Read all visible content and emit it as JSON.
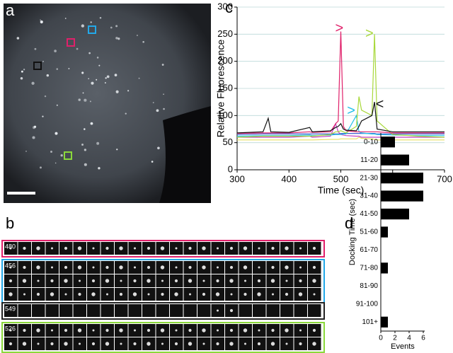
{
  "panel_labels": [
    "a",
    "b",
    "c",
    "d"
  ],
  "traces": [
    "480",
    "456",
    "549",
    "526"
  ],
  "chart_data": [
    {
      "type": "line",
      "xlabel": "Time (sec)",
      "ylabel": "Relative Fluorescence",
      "x": [
        300,
        350,
        360,
        365,
        400,
        440,
        445,
        480,
        490,
        495,
        500,
        505,
        510,
        530,
        535,
        540,
        560,
        565,
        570,
        600,
        650,
        700
      ],
      "series": [
        {
          "color": "#111111",
          "values": [
            68,
            70,
            95,
            70,
            69,
            78,
            70,
            72,
            78,
            80,
            85,
            75,
            73,
            72,
            80,
            90,
            100,
            125,
            75,
            70,
            70,
            70
          ]
        },
        {
          "color": "#e0206a",
          "values": [
            67,
            68,
            68,
            68,
            68,
            70,
            69,
            70,
            85,
            90,
            255,
            80,
            72,
            70,
            70,
            70,
            70,
            70,
            70,
            68,
            68,
            68
          ]
        },
        {
          "color": "#a8d83a",
          "values": [
            60,
            62,
            62,
            62,
            62,
            62,
            62,
            65,
            70,
            70,
            72,
            70,
            68,
            80,
            135,
            110,
            100,
            250,
            90,
            65,
            62,
            60
          ]
        },
        {
          "color": "#22c0e8",
          "values": [
            62,
            63,
            63,
            63,
            63,
            64,
            63,
            64,
            65,
            65,
            65,
            66,
            66,
            100,
            70,
            68,
            66,
            66,
            65,
            64,
            63,
            63
          ]
        },
        {
          "color": "#c040c0",
          "values": [
            60,
            60,
            60,
            60,
            60,
            62,
            60,
            62,
            85,
            70,
            65,
            64,
            63,
            62,
            62,
            60,
            60,
            60,
            60,
            60,
            60,
            60
          ]
        },
        {
          "color": "#e8e060",
          "values": [
            55,
            55,
            55,
            55,
            55,
            55,
            55,
            56,
            56,
            56,
            57,
            57,
            57,
            57,
            60,
            58,
            57,
            56,
            55,
            55,
            55,
            55
          ]
        },
        {
          "color": "#4060d0",
          "values": [
            65,
            66,
            66,
            66,
            66,
            66,
            66,
            66,
            66,
            66,
            67,
            67,
            67,
            67,
            67,
            67,
            67,
            67,
            66,
            66,
            66,
            66
          ]
        }
      ],
      "xlim": [
        300,
        700
      ],
      "xticks": [
        300,
        400,
        500,
        600,
        700
      ],
      "ylim": [
        0,
        300
      ],
      "yticks": [
        0,
        50,
        100,
        150,
        200,
        250,
        300
      ],
      "grid": true,
      "annotations": [
        {
          "text": ">",
          "x": 497,
          "y": 260,
          "color": "#e0206a"
        },
        {
          "text": ">",
          "x": 555,
          "y": 250,
          "color": "#a8d83a"
        },
        {
          "text": ">",
          "x": 520,
          "y": 108,
          "color": "#22c0e8"
        },
        {
          "text": "<",
          "x": 575,
          "y": 120,
          "color": "#111111"
        }
      ]
    },
    {
      "type": "bar",
      "orientation": "horizontal",
      "xlabel": "Events",
      "ylabel": "Docking Time (sec)",
      "categories": [
        "0-10",
        "11-20",
        "21-30",
        "31-40",
        "41-50",
        "51-60",
        "61-70",
        "71-80",
        "81-90",
        "91-100",
        "101+"
      ],
      "values": [
        2,
        4,
        6,
        6,
        4,
        1,
        0,
        1,
        0,
        0,
        1
      ],
      "color": "#000000",
      "xlim": [
        0,
        6.2
      ],
      "xticks": [
        0,
        2,
        4,
        6
      ]
    }
  ]
}
